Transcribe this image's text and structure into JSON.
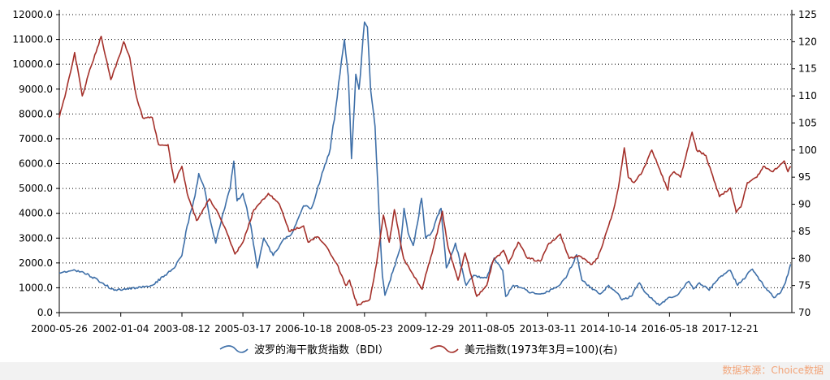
{
  "chart_data": {
    "type": "line",
    "x_ticks": [
      "2000-05-26",
      "2002-01-04",
      "2003-08-12",
      "2005-03-17",
      "2006-10-18",
      "2008-05-23",
      "2009-12-29",
      "2011-08-05",
      "2013-03-11",
      "2014-10-14",
      "2016-05-18",
      "2017-12-21"
    ],
    "y_left": {
      "ticks": [
        "0.0",
        "1000.0",
        "2000.0",
        "3000.0",
        "4000.0",
        "5000.0",
        "6000.0",
        "7000.0",
        "8000.0",
        "9000.0",
        "10000.0",
        "11000.0",
        "12000.0"
      ],
      "range": [
        0,
        12000
      ]
    },
    "y_right": {
      "ticks": [
        "70",
        "75",
        "80",
        "85",
        "90",
        "95",
        "100",
        "105",
        "110",
        "115",
        "120",
        "125"
      ],
      "range": [
        70,
        125
      ]
    },
    "grid": "horizontal dotted",
    "legend_position": "bottom",
    "series": [
      {
        "name": "波罗的海干散货指数（BDI）",
        "axis": "left",
        "color": "#3e6fa8",
        "points": [
          [
            "2000-05-26",
            1600
          ],
          [
            "2000-10-01",
            1700
          ],
          [
            "2001-01-01",
            1650
          ],
          [
            "2001-06-01",
            1300
          ],
          [
            "2001-11-01",
            900
          ],
          [
            "2002-06-01",
            1000
          ],
          [
            "2002-11-01",
            1100
          ],
          [
            "2003-03-01",
            1500
          ],
          [
            "2003-06-01",
            1800
          ],
          [
            "2003-08-12",
            2300
          ],
          [
            "2003-10-01",
            3500
          ],
          [
            "2003-12-15",
            4700
          ],
          [
            "2004-01-20",
            5600
          ],
          [
            "2004-03-15",
            5000
          ],
          [
            "2004-05-15",
            3600
          ],
          [
            "2004-07-01",
            2800
          ],
          [
            "2004-09-01",
            3900
          ],
          [
            "2004-11-15",
            5000
          ],
          [
            "2004-12-20",
            6100
          ],
          [
            "2005-01-20",
            4500
          ],
          [
            "2005-03-17",
            4800
          ],
          [
            "2005-06-01",
            3500
          ],
          [
            "2005-08-01",
            1800
          ],
          [
            "2005-10-01",
            3000
          ],
          [
            "2006-01-01",
            2300
          ],
          [
            "2006-04-01",
            2900
          ],
          [
            "2006-07-01",
            3200
          ],
          [
            "2006-10-18",
            4300
          ],
          [
            "2007-01-01",
            4200
          ],
          [
            "2007-04-01",
            5400
          ],
          [
            "2007-07-01",
            6600
          ],
          [
            "2007-10-01",
            9600
          ],
          [
            "2007-11-13",
            11000
          ],
          [
            "2007-12-20",
            9500
          ],
          [
            "2008-01-20",
            6200
          ],
          [
            "2008-03-01",
            9600
          ],
          [
            "2008-04-01",
            9000
          ],
          [
            "2008-05-23",
            11700
          ],
          [
            "2008-06-20",
            11500
          ],
          [
            "2008-07-20",
            9000
          ],
          [
            "2008-09-01",
            7500
          ],
          [
            "2008-10-10",
            4000
          ],
          [
            "2008-11-10",
            1500
          ],
          [
            "2008-12-05",
            700
          ],
          [
            "2009-01-15",
            1200
          ],
          [
            "2009-03-01",
            1800
          ],
          [
            "2009-05-01",
            2600
          ],
          [
            "2009-06-05",
            4200
          ],
          [
            "2009-07-15",
            3200
          ],
          [
            "2009-09-01",
            2700
          ],
          [
            "2009-11-20",
            4600
          ],
          [
            "2009-12-29",
            3000
          ],
          [
            "2010-02-20",
            3200
          ],
          [
            "2010-05-25",
            4200
          ],
          [
            "2010-07-15",
            1800
          ],
          [
            "2010-10-10",
            2800
          ],
          [
            "2011-01-20",
            1100
          ],
          [
            "2011-04-01",
            1500
          ],
          [
            "2011-07-01",
            1400
          ],
          [
            "2011-08-05",
            1400
          ],
          [
            "2011-10-15",
            2200
          ],
          [
            "2012-01-05",
            1700
          ],
          [
            "2012-02-03",
            650
          ],
          [
            "2012-04-15",
            1100
          ],
          [
            "2012-07-01",
            1000
          ],
          [
            "2012-10-01",
            800
          ],
          [
            "2013-01-01",
            750
          ],
          [
            "2013-03-11",
            850
          ],
          [
            "2013-07-01",
            1100
          ],
          [
            "2013-09-01",
            1400
          ],
          [
            "2013-12-12",
            2330
          ],
          [
            "2014-02-01",
            1300
          ],
          [
            "2014-05-01",
            1000
          ],
          [
            "2014-07-25",
            750
          ],
          [
            "2014-10-14",
            1100
          ],
          [
            "2015-01-01",
            800
          ],
          [
            "2015-02-18",
            510
          ],
          [
            "2015-05-15",
            650
          ],
          [
            "2015-08-05",
            1200
          ],
          [
            "2015-10-01",
            800
          ],
          [
            "2016-02-10",
            290
          ],
          [
            "2016-05-18",
            620
          ],
          [
            "2016-08-01",
            700
          ],
          [
            "2016-11-18",
            1260
          ],
          [
            "2017-01-01",
            950
          ],
          [
            "2017-03-01",
            1200
          ],
          [
            "2017-06-01",
            900
          ],
          [
            "2017-09-01",
            1400
          ],
          [
            "2017-12-21",
            1700
          ],
          [
            "2018-03-01",
            1100
          ],
          [
            "2018-07-20",
            1750
          ],
          [
            "2018-11-01",
            1100
          ],
          [
            "2019-02-10",
            600
          ],
          [
            "2019-04-15",
            800
          ],
          [
            "2019-06-01",
            1200
          ],
          [
            "2019-07-20",
            1950
          ]
        ]
      },
      {
        "name": "美元指数(1973年3月=100)(右)",
        "axis": "right",
        "color": "#a4302a",
        "points": [
          [
            "2000-05-26",
            106
          ],
          [
            "2000-08-01",
            111
          ],
          [
            "2000-10-20",
            118
          ],
          [
            "2001-01-01",
            110
          ],
          [
            "2001-03-01",
            114
          ],
          [
            "2001-07-01",
            121
          ],
          [
            "2001-10-01",
            113
          ],
          [
            "2002-01-04",
            118
          ],
          [
            "2002-02-01",
            120
          ],
          [
            "2002-04-01",
            117
          ],
          [
            "2002-06-01",
            110
          ],
          [
            "2002-08-01",
            106
          ],
          [
            "2002-11-01",
            106
          ],
          [
            "2003-01-01",
            101
          ],
          [
            "2003-04-01",
            101
          ],
          [
            "2003-06-01",
            94
          ],
          [
            "2003-08-12",
            97
          ],
          [
            "2003-10-01",
            92
          ],
          [
            "2003-12-30",
            87
          ],
          [
            "2004-02-01",
            88
          ],
          [
            "2004-05-01",
            91
          ],
          [
            "2004-08-01",
            88
          ],
          [
            "2004-11-01",
            84
          ],
          [
            "2004-12-31",
            80.8
          ],
          [
            "2005-03-17",
            83
          ],
          [
            "2005-07-01",
            89
          ],
          [
            "2005-11-15",
            92
          ],
          [
            "2006-03-01",
            90
          ],
          [
            "2006-06-01",
            85
          ],
          [
            "2006-10-18",
            86
          ],
          [
            "2006-12-01",
            83
          ],
          [
            "2007-03-01",
            84
          ],
          [
            "2007-06-01",
            82
          ],
          [
            "2007-09-01",
            79
          ],
          [
            "2007-11-26",
            75
          ],
          [
            "2008-01-01",
            76
          ],
          [
            "2008-03-15",
            71.3
          ],
          [
            "2008-05-23",
            72
          ],
          [
            "2008-07-15",
            72.5
          ],
          [
            "2008-09-15",
            79
          ],
          [
            "2008-11-20",
            88
          ],
          [
            "2009-01-15",
            83
          ],
          [
            "2009-03-05",
            89
          ],
          [
            "2009-06-01",
            80
          ],
          [
            "2009-11-25",
            74.3
          ],
          [
            "2009-12-29",
            77
          ],
          [
            "2010-03-01",
            81
          ],
          [
            "2010-06-07",
            88.7
          ],
          [
            "2010-08-01",
            82
          ],
          [
            "2010-11-04",
            76
          ],
          [
            "2011-01-10",
            81
          ],
          [
            "2011-05-01",
            73
          ],
          [
            "2011-08-05",
            75
          ],
          [
            "2011-10-04",
            79.5
          ],
          [
            "2012-01-13",
            81.5
          ],
          [
            "2012-03-01",
            79
          ],
          [
            "2012-06-01",
            83
          ],
          [
            "2012-09-01",
            80
          ],
          [
            "2013-01-01",
            79.5
          ],
          [
            "2013-03-11",
            82.5
          ],
          [
            "2013-07-09",
            84.5
          ],
          [
            "2013-10-01",
            80
          ],
          [
            "2014-01-01",
            80.5
          ],
          [
            "2014-05-08",
            78.9
          ],
          [
            "2014-07-01",
            80
          ],
          [
            "2014-10-14",
            86
          ],
          [
            "2014-12-01",
            89
          ],
          [
            "2015-01-15",
            93
          ],
          [
            "2015-03-13",
            100.4
          ],
          [
            "2015-04-20",
            95
          ],
          [
            "2015-06-15",
            94
          ],
          [
            "2015-09-01",
            96
          ],
          [
            "2015-12-01",
            100
          ],
          [
            "2016-05-03",
            92.6
          ],
          [
            "2016-05-18",
            95
          ],
          [
            "2016-07-01",
            96
          ],
          [
            "2016-09-01",
            95
          ],
          [
            "2016-12-20",
            103.3
          ],
          [
            "2017-02-01",
            100
          ],
          [
            "2017-05-01",
            99
          ],
          [
            "2017-09-08",
            91.4
          ],
          [
            "2017-12-21",
            93
          ],
          [
            "2018-02-15",
            88.5
          ],
          [
            "2018-04-01",
            89.5
          ],
          [
            "2018-06-01",
            94
          ],
          [
            "2018-09-01",
            95
          ],
          [
            "2018-11-01",
            97
          ],
          [
            "2019-02-01",
            96
          ],
          [
            "2019-04-01",
            97
          ],
          [
            "2019-05-20",
            98
          ],
          [
            "2019-06-25",
            96
          ],
          [
            "2019-07-20",
            97
          ]
        ]
      }
    ]
  },
  "legend": {
    "bdi_label": "波罗的海干散货指数（BDI）",
    "usd_label": "美元指数(1973年3月=100)(右)"
  },
  "source_text": "数据来源：Choice数据"
}
